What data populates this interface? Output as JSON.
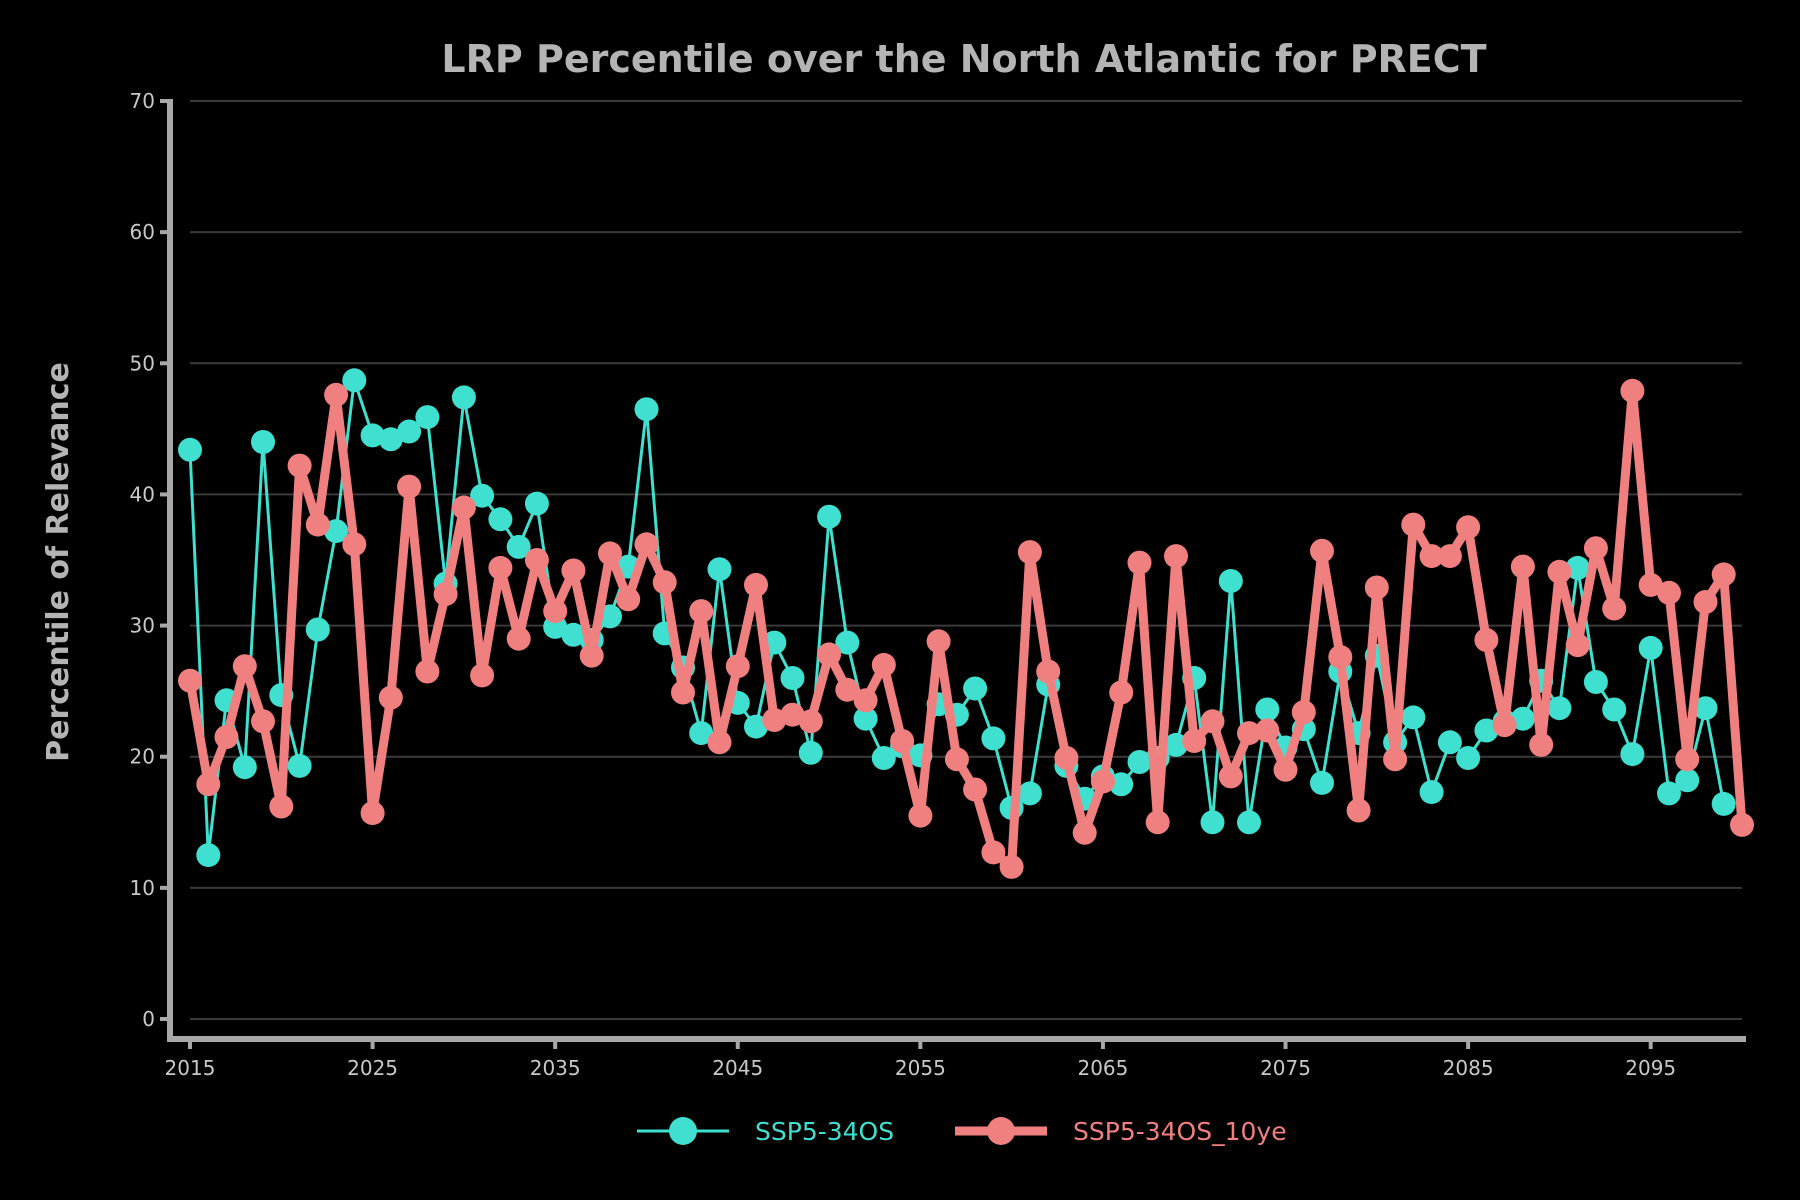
{
  "chart_data": {
    "type": "line",
    "title": "LRP Percentile over the North Atlantic for PRECT",
    "xlabel": "",
    "ylabel": "Percentile of Relevance",
    "xlim": [
      2015,
      2100
    ],
    "ylim": [
      0,
      70
    ],
    "xticks": [
      "2015",
      "2025",
      "2035",
      "2045",
      "2055",
      "2065",
      "2075",
      "2085",
      "2095"
    ],
    "yticks": [
      "0",
      "10",
      "20",
      "30",
      "40",
      "50",
      "60",
      "70"
    ],
    "grid": "horizontal",
    "legend": "bottom-center",
    "x_start": 2015,
    "series": [
      {
        "name": "SSP5-34OS",
        "color": "#40e0d0",
        "values": [
          43.4,
          12.5,
          24.3,
          19.2,
          44.0,
          24.7,
          19.3,
          29.7,
          37.2,
          48.7,
          44.5,
          44.2,
          44.8,
          45.9,
          33.2,
          47.4,
          39.9,
          38.1,
          36.0,
          39.3,
          29.9,
          29.3,
          28.9,
          30.7,
          34.5,
          46.5,
          29.4,
          26.8,
          21.8,
          34.3,
          24.1,
          22.3,
          28.7,
          26.0,
          20.3,
          38.3,
          28.7,
          22.9,
          19.9,
          20.8,
          20.1,
          24.0,
          23.2,
          25.2,
          21.4,
          16.1,
          17.2,
          25.5,
          19.3,
          16.8,
          18.5,
          17.9,
          19.6,
          19.9,
          20.9,
          26.0,
          15.0,
          33.4,
          15.0,
          23.6,
          20.7,
          22.1,
          18.0,
          26.5,
          21.8,
          27.7,
          21.1,
          23.0,
          17.3,
          21.1,
          19.9,
          22.0,
          22.7,
          22.9,
          25.8,
          23.7,
          34.4,
          25.7,
          23.6,
          20.2,
          28.3,
          17.2,
          18.2,
          23.7,
          16.4
        ]
      },
      {
        "name": "SSP5-34OS_10ye",
        "color": "#f08080",
        "values": [
          25.8,
          17.9,
          21.5,
          26.9,
          22.7,
          16.2,
          42.2,
          37.7,
          47.6,
          36.2,
          15.7,
          24.5,
          40.6,
          26.5,
          32.4,
          39.0,
          26.2,
          34.4,
          29.0,
          35.0,
          31.1,
          34.2,
          27.7,
          35.5,
          32.0,
          36.2,
          33.3,
          24.9,
          31.1,
          21.1,
          26.9,
          33.1,
          22.8,
          23.2,
          22.7,
          27.8,
          25.1,
          24.3,
          27.0,
          21.2,
          15.5,
          28.8,
          19.8,
          17.5,
          12.7,
          11.6,
          35.6,
          26.5,
          19.9,
          14.2,
          18.1,
          24.9,
          34.8,
          15.0,
          35.3,
          21.2,
          22.7,
          18.5,
          21.8,
          22.0,
          19.0,
          23.4,
          35.7,
          27.6,
          15.9,
          32.9,
          19.8,
          37.7,
          35.3,
          35.3,
          37.5,
          28.9,
          22.4,
          34.5,
          20.9,
          34.1,
          28.5,
          35.9,
          31.3,
          47.9,
          33.1,
          32.5,
          19.8,
          31.8,
          33.9,
          14.8
        ]
      }
    ]
  }
}
